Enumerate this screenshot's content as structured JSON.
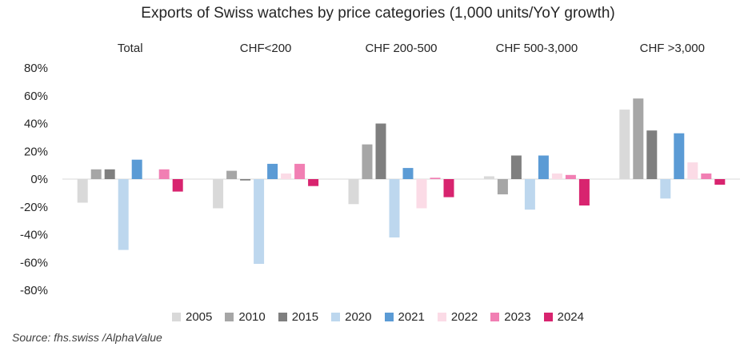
{
  "chart_data": {
    "type": "bar",
    "title": "Exports of Swiss watches by price categories (1,000 units/YoY growth)",
    "categories": [
      "Total",
      "CHF<200",
      "CHF 200-500",
      "CHF 500-3,000",
      "CHF >3,000"
    ],
    "ylim": [
      -80,
      80
    ],
    "yticks": [
      80,
      60,
      40,
      20,
      0,
      -20,
      -40,
      -60,
      -80
    ],
    "ytick_format": "%",
    "grid": false,
    "legend_position": "bottom",
    "series": [
      {
        "name": "2005",
        "color": "#d9d9d9",
        "values": [
          -17,
          -21,
          -18,
          2,
          50
        ]
      },
      {
        "name": "2010",
        "color": "#a6a6a6",
        "values": [
          7,
          6,
          25,
          -11,
          58
        ]
      },
      {
        "name": "2015",
        "color": "#7f7f7f",
        "values": [
          7,
          -1,
          40,
          17,
          35
        ]
      },
      {
        "name": "2020",
        "color": "#bdd7ee",
        "values": [
          -51,
          -61,
          -42,
          -22,
          -14
        ]
      },
      {
        "name": "2021",
        "color": "#5b9bd5",
        "values": [
          14,
          11,
          8,
          17,
          33
        ]
      },
      {
        "name": "2022",
        "color": "#fbdbe6",
        "values": [
          0,
          4,
          -21,
          4,
          12
        ]
      },
      {
        "name": "2023",
        "color": "#f17fb3",
        "values": [
          7,
          11,
          1,
          3,
          4
        ]
      },
      {
        "name": "2024",
        "color": "#d8246f",
        "values": [
          -9,
          -5,
          -13,
          -19,
          -4
        ]
      }
    ]
  },
  "source_text": "Source: fhs.swiss /AlphaValue"
}
